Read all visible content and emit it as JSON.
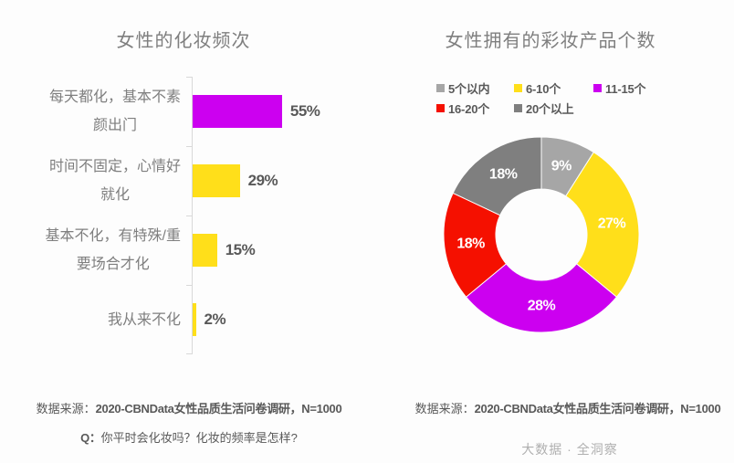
{
  "left_chart": {
    "title": "女性的化妆频次",
    "rows": [
      {
        "lines": [
          "每天都化，基本不素",
          "颜出门"
        ],
        "value_label": "55%"
      },
      {
        "lines": [
          "时间不固定，心情好",
          "就化"
        ],
        "value_label": "29%"
      },
      {
        "lines": [
          "基本不化，有特殊/重",
          "要场合才化"
        ],
        "value_label": "15%"
      },
      {
        "lines": [
          "我从来不化"
        ],
        "value_label": "2%"
      }
    ]
  },
  "right_chart": {
    "title": "女性拥有的彩妆产品个数",
    "legend": [
      {
        "label": "5个以内",
        "color": "#A6A6A6"
      },
      {
        "label": "6-10个",
        "color": "#FFDF1A"
      },
      {
        "label": "11-15个",
        "color": "#CC00F0"
      },
      {
        "label": "16-20个",
        "color": "#F51000"
      },
      {
        "label": "20个以上",
        "color": "#7F7F7F"
      }
    ]
  },
  "footers": {
    "left": {
      "source_prefix": "数据来源：",
      "source_value": "2020-CBNData女性品质生活问卷调研，N=1000",
      "question_prefix": "Q：",
      "question_text": "你平时会化妆吗？化妆的频率是怎样?"
    },
    "right": {
      "source_prefix": "数据来源：",
      "source_value": "2020-CBNData女性品质生活问卷调研，N=1000",
      "watermark": "大数据 · 全洞察"
    }
  },
  "chart_data": [
    {
      "type": "bar",
      "orientation": "horizontal",
      "title": "女性的化妆频次",
      "categories": [
        "每天都化，基本不素颜出门",
        "时间不固定，心情好就化",
        "基本不化，有特殊/重要场合才化",
        "我从来不化"
      ],
      "values": [
        55,
        29,
        15,
        2
      ],
      "unit": "%",
      "value_labels": [
        "55%",
        "29%",
        "15%",
        "2%"
      ],
      "bar_colors": [
        "#CC00F0",
        "#FFDF1A",
        "#FFDF1A",
        "#FFDF1A"
      ],
      "xlim": [
        0,
        100
      ],
      "grid": false,
      "axis_color": "#D9D9D9"
    },
    {
      "type": "pie",
      "subtype": "donut",
      "title": "女性拥有的彩妆产品个数",
      "categories": [
        "5个以内",
        "6-10个",
        "11-15个",
        "16-20个",
        "20个以上"
      ],
      "values": [
        9,
        27,
        28,
        18,
        18
      ],
      "unit": "%",
      "labels": [
        "9%",
        "27%",
        "28%",
        "18%",
        "18%"
      ],
      "colors": [
        "#A6A6A6",
        "#FFDF1A",
        "#CC00F0",
        "#F51000",
        "#7F7F7F"
      ],
      "start_angle_deg": 0,
      "direction": "clockwise",
      "inner_radius_ratio": 0.47,
      "legend_position": "top"
    }
  ]
}
